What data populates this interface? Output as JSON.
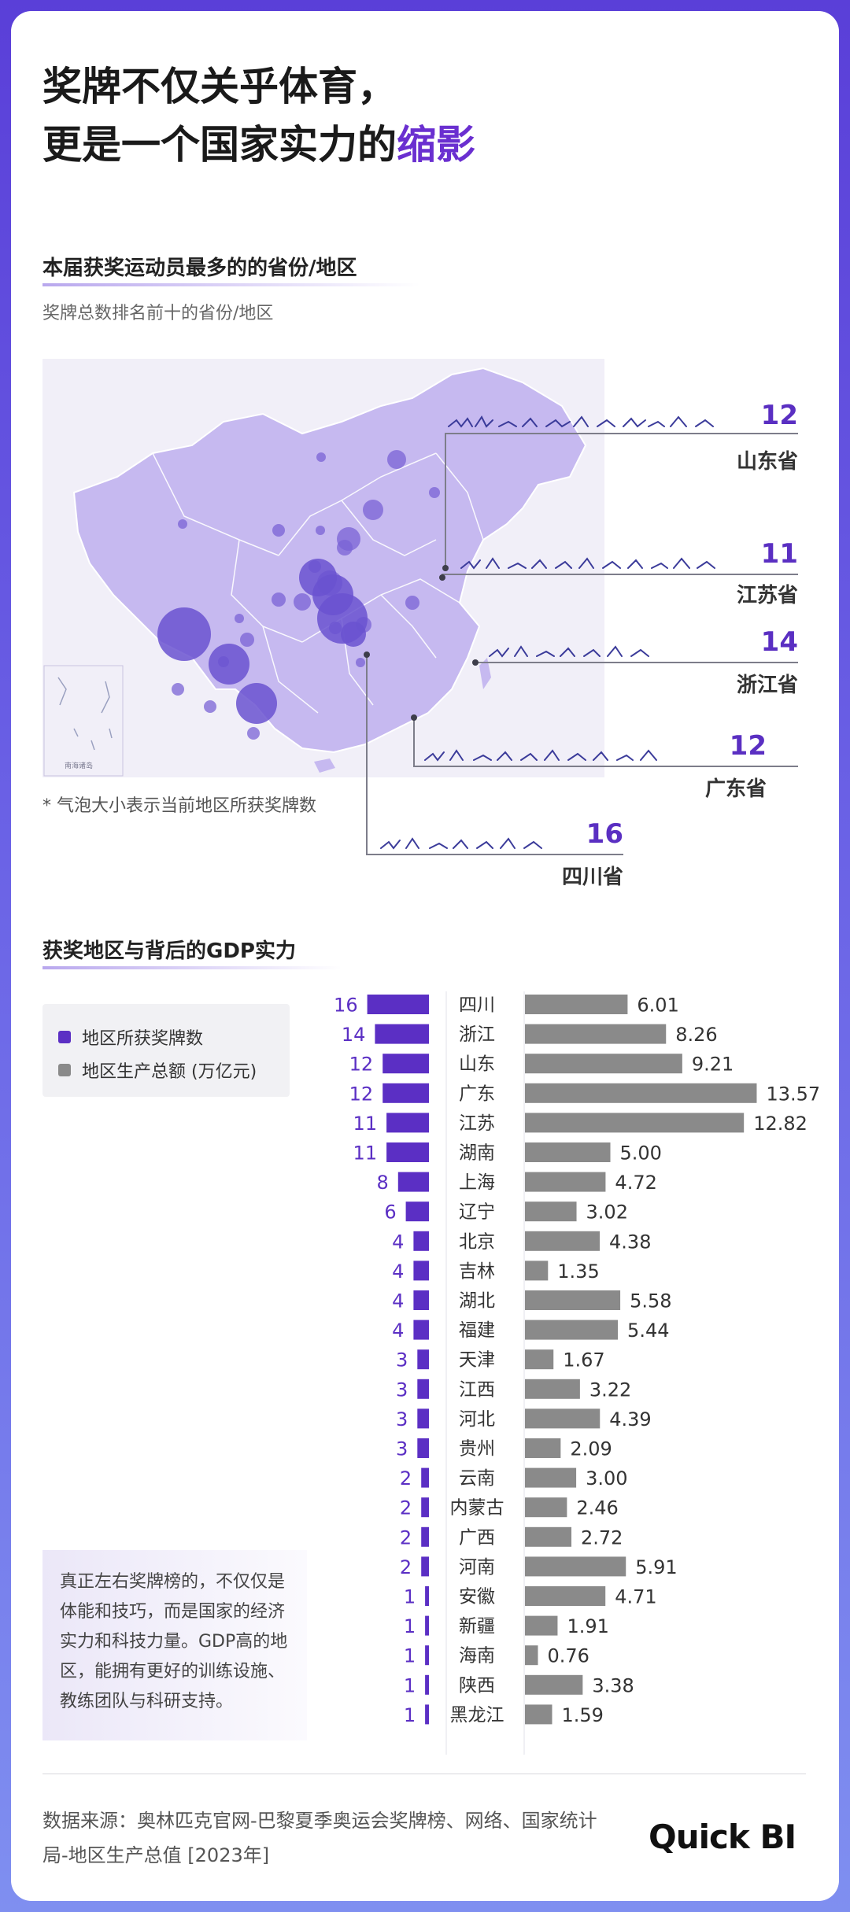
{
  "title": {
    "line1": "奖牌不仅关乎体育，",
    "line2_prefix": "更是一个国家实力的",
    "line2_highlight": "缩影"
  },
  "section1": {
    "title": "本届获奖运动员最多的的省份/地区",
    "subtitle": "奖牌总数排名前十的省份/地区",
    "note": "* 气泡大小表示当前地区所获奖牌数",
    "callouts": [
      {
        "name": "山东省",
        "value": 12
      },
      {
        "name": "江苏省",
        "value": 11
      },
      {
        "name": "浙江省",
        "value": 14
      },
      {
        "name": "广东省",
        "value": 12
      },
      {
        "name": "四川省",
        "value": 16
      }
    ],
    "inset_label": "南海诸岛"
  },
  "section2": {
    "title": "获奖地区与背后的GDP实力"
  },
  "legend": {
    "medals": "地区所获奖牌数",
    "gdp": "地区生产总额 (万亿元)"
  },
  "colors": {
    "medal": "#5b2fc4",
    "gdp": "#8a8a8a",
    "accent": "#6a2fd0"
  },
  "chart_data": {
    "type": "bar",
    "categories": [
      "四川",
      "浙江",
      "山东",
      "广东",
      "江苏",
      "湖南",
      "上海",
      "辽宁",
      "北京",
      "吉林",
      "湖北",
      "福建",
      "天津",
      "江西",
      "河北",
      "贵州",
      "云南",
      "内蒙古",
      "广西",
      "河南",
      "安徽",
      "新疆",
      "海南",
      "陕西",
      "黑龙江"
    ],
    "series": [
      {
        "name": "地区所获奖牌数",
        "values": [
          16,
          14,
          12,
          12,
          11,
          11,
          8,
          6,
          4,
          4,
          4,
          4,
          3,
          3,
          3,
          3,
          2,
          2,
          2,
          2,
          1,
          1,
          1,
          1,
          1
        ]
      },
      {
        "name": "地区生产总额 (万亿元)",
        "values": [
          6.01,
          8.26,
          9.21,
          13.57,
          12.82,
          5.0,
          4.72,
          3.02,
          4.38,
          1.35,
          5.58,
          5.44,
          1.67,
          3.22,
          4.39,
          2.09,
          3.0,
          2.46,
          2.72,
          5.91,
          4.71,
          1.91,
          0.76,
          3.38,
          1.59
        ]
      }
    ],
    "title": "获奖地区与背后的GDP实力",
    "medal_labels": [
      "16",
      "14",
      "12",
      "12",
      "11",
      "11",
      "8",
      "6",
      "4",
      "4",
      "4",
      "4",
      "3",
      "3",
      "3",
      "3",
      "2",
      "2",
      "2",
      "2",
      "1",
      "1",
      "1",
      "1",
      "1"
    ],
    "gdp_labels": [
      "6.01",
      "8.26",
      "9.21",
      "13.57",
      "12.82",
      "5.00",
      "4.72",
      "3.02",
      "4.38",
      "1.35",
      "5.58",
      "5.44",
      "1.67",
      "3.22",
      "4.39",
      "2.09",
      "3.00",
      "2.46",
      "2.72",
      "5.91",
      "4.71",
      "1.91",
      "0.76",
      "3.38",
      "1.59"
    ]
  },
  "quote": "真正左右奖牌榜的，不仅仅是体能和技巧，而是国家的经济实力和科技力量。GDP高的地区，能拥有更好的训练设施、教练团队与科研支持。",
  "source": "数据来源：奥林匹克官网-巴黎夏季奥运会奖牌榜、网络、国家统计局-地区生产总值 [2023年]",
  "logo": "Quick BI"
}
